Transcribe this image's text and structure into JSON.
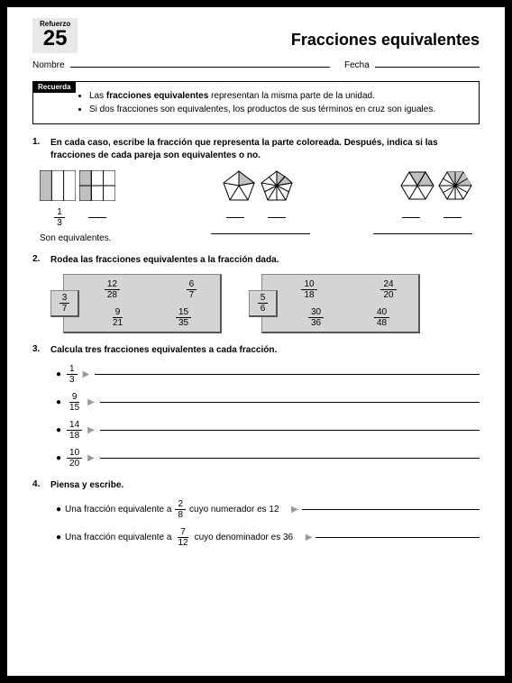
{
  "header": {
    "refuerzo_label": "Refuerzo",
    "number": "25",
    "title": "Fracciones equivalentes"
  },
  "fields": {
    "nombre": "Nombre",
    "fecha": "Fecha"
  },
  "recuerda": {
    "tag": "Recuerda",
    "items": [
      {
        "pre": "Las ",
        "bold": "fracciones equivalentes",
        "post": " representan la misma parte de la unidad."
      },
      {
        "text": "Si dos fracciones son equivalentes, los productos de sus términos en cruz son iguales."
      }
    ]
  },
  "q1": {
    "num": "1.",
    "text": "En cada caso, escribe la fracción que representa la parte coloreada. Después, indica si las fracciones de cada pareja son equivalentes o no.",
    "colors": {
      "fill": "#c0c0c0",
      "stroke": "#000"
    },
    "given_frac": {
      "n": "1",
      "d": "3"
    },
    "equiv_label": "Son equivalentes."
  },
  "q2": {
    "num": "2.",
    "text": "Rodea las fracciones equivalentes a la fracción dada.",
    "box_bg": "#d4d4d4",
    "left": {
      "main": {
        "n": "3",
        "d": "7"
      },
      "fracs": [
        {
          "n": "12",
          "d": "28"
        },
        {
          "n": "6",
          "d": "7"
        },
        {
          "n": "9",
          "d": "21"
        },
        {
          "n": "15",
          "d": "35"
        }
      ]
    },
    "right": {
      "main": {
        "n": "5",
        "d": "6"
      },
      "fracs": [
        {
          "n": "10",
          "d": "18"
        },
        {
          "n": "24",
          "d": "20"
        },
        {
          "n": "30",
          "d": "36"
        },
        {
          "n": "40",
          "d": "48"
        }
      ]
    }
  },
  "q3": {
    "num": "3.",
    "text": "Calcula tres fracciones equivalentes a cada fracción.",
    "items": [
      {
        "n": "1",
        "d": "3"
      },
      {
        "n": "9",
        "d": "15"
      },
      {
        "n": "14",
        "d": "18"
      },
      {
        "n": "10",
        "d": "20"
      }
    ]
  },
  "q4": {
    "num": "4.",
    "text": "Piensa y escribe.",
    "items": [
      {
        "pre": "Una fracción equivalente a",
        "frac": {
          "n": "2",
          "d": "8"
        },
        "mid": "cuyo numerador es 12"
      },
      {
        "pre": "Una fracción equivalente a",
        "frac": {
          "n": "7",
          "d": "12"
        },
        "mid": "cuyo denominador es 36"
      }
    ]
  }
}
